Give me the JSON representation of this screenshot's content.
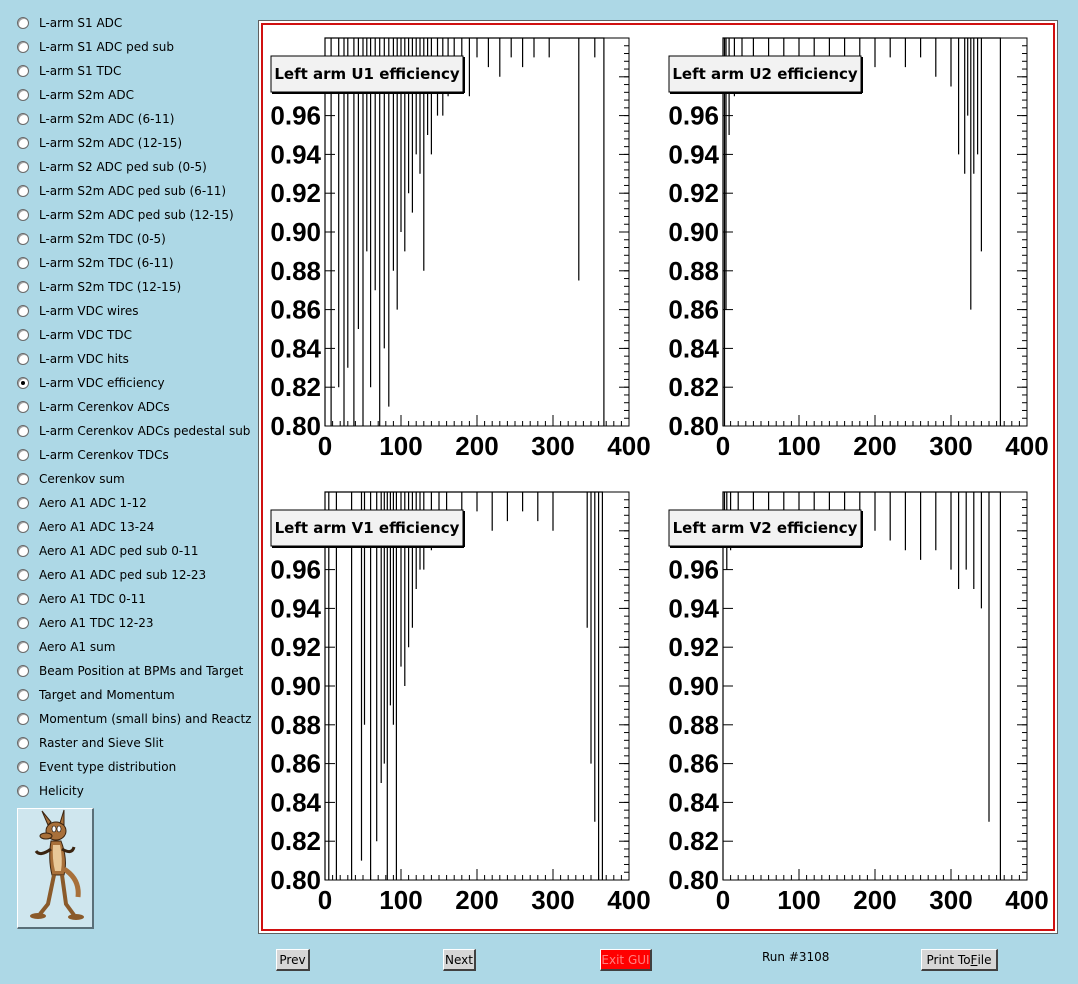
{
  "sidebar": {
    "items": [
      {
        "label": "L-arm S1 ADC",
        "checked": false
      },
      {
        "label": "L-arm S1 ADC ped sub",
        "checked": false
      },
      {
        "label": "L-arm S1 TDC",
        "checked": false
      },
      {
        "label": "L-arm S2m ADC",
        "checked": false
      },
      {
        "label": "L-arm S2m ADC (6-11)",
        "checked": false
      },
      {
        "label": "L-arm S2m ADC (12-15)",
        "checked": false
      },
      {
        "label": "L-arm S2 ADC ped sub (0-5)",
        "checked": false
      },
      {
        "label": "L-arm S2m ADC ped sub (6-11)",
        "checked": false
      },
      {
        "label": "L-arm S2m ADC ped sub (12-15)",
        "checked": false
      },
      {
        "label": "L-arm S2m TDC (0-5)",
        "checked": false
      },
      {
        "label": "L-arm S2m TDC (6-11)",
        "checked": false
      },
      {
        "label": "L-arm S2m TDC (12-15)",
        "checked": false
      },
      {
        "label": "L-arm VDC wires",
        "checked": false
      },
      {
        "label": "L-arm VDC TDC",
        "checked": false
      },
      {
        "label": "L-arm VDC hits",
        "checked": false
      },
      {
        "label": "L-arm VDC efficiency",
        "checked": true
      },
      {
        "label": "L-arm Cerenkov ADCs",
        "checked": false
      },
      {
        "label": "L-arm Cerenkov ADCs pedestal sub",
        "checked": false
      },
      {
        "label": "L-arm Cerenkov TDCs",
        "checked": false
      },
      {
        "label": "Cerenkov sum",
        "checked": false
      },
      {
        "label": "Aero A1 ADC 1-12",
        "checked": false
      },
      {
        "label": "Aero A1 ADC 13-24",
        "checked": false
      },
      {
        "label": "Aero A1 ADC ped sub 0-11",
        "checked": false
      },
      {
        "label": "Aero A1 ADC ped sub 12-23",
        "checked": false
      },
      {
        "label": "Aero A1 TDC 0-11",
        "checked": false
      },
      {
        "label": "Aero A1 TDC 12-23",
        "checked": false
      },
      {
        "label": "Aero A1 sum",
        "checked": false
      },
      {
        "label": "Beam Position at BPMs and Target",
        "checked": false
      },
      {
        "label": "Target and Momentum",
        "checked": false
      },
      {
        "label": "Momentum (small bins) and Reactz",
        "checked": false
      },
      {
        "label": "Raster and Sieve Slit",
        "checked": false
      },
      {
        "label": "Event type distribution",
        "checked": false
      },
      {
        "label": "Helicity",
        "checked": false
      }
    ],
    "logo_icon": "coyote-icon"
  },
  "buttons": {
    "prev": "Prev",
    "next": "Next",
    "exit": "Exit GUI",
    "print_prefix": "Print To ",
    "print_accel": "F",
    "print_suffix": "ile"
  },
  "run_label": "Run #3108",
  "colors": {
    "background": "#add8e6",
    "canvas_border": "#d01010",
    "exit_button": "#ff0000"
  },
  "chart_data": [
    {
      "type": "line",
      "title": "Left arm U1 efficiency",
      "xlim": [
        0,
        400
      ],
      "ylim": [
        0.8,
        1.0
      ],
      "xticks": [
        0,
        100,
        200,
        300,
        400
      ],
      "yticks": [
        0.8,
        0.82,
        0.84,
        0.86,
        0.88,
        0.9,
        0.92,
        0.94,
        0.96,
        0.98
      ],
      "xtick_labels": [
        "0",
        "100",
        "200",
        "300",
        "400"
      ],
      "ytick_labels": [
        "0.80",
        "0.82",
        "0.84",
        "0.86",
        "0.88",
        "0.90",
        "0.92",
        "0.94",
        "0.96",
        "0.98"
      ],
      "baseline": 1.0,
      "x_end": 367,
      "dips": [
        [
          8,
          0.8
        ],
        [
          18,
          0.82
        ],
        [
          25,
          0.8
        ],
        [
          30,
          0.83
        ],
        [
          38,
          0.8
        ],
        [
          44,
          0.85
        ],
        [
          50,
          0.8
        ],
        [
          55,
          0.89
        ],
        [
          60,
          0.82
        ],
        [
          66,
          0.87
        ],
        [
          72,
          0.8
        ],
        [
          78,
          0.84
        ],
        [
          84,
          0.81
        ],
        [
          90,
          0.88
        ],
        [
          95,
          0.86
        ],
        [
          100,
          0.9
        ],
        [
          105,
          0.89
        ],
        [
          110,
          0.92
        ],
        [
          115,
          0.91
        ],
        [
          120,
          0.94
        ],
        [
          125,
          0.93
        ],
        [
          130,
          0.88
        ],
        [
          135,
          0.95
        ],
        [
          140,
          0.94
        ],
        [
          148,
          0.96
        ],
        [
          155,
          0.96
        ],
        [
          162,
          0.97
        ],
        [
          170,
          0.98
        ],
        [
          180,
          0.985
        ],
        [
          190,
          0.97
        ],
        [
          200,
          0.99
        ],
        [
          215,
          0.985
        ],
        [
          230,
          0.98
        ],
        [
          245,
          0.99
        ],
        [
          260,
          0.985
        ],
        [
          275,
          0.99
        ],
        [
          295,
          0.99
        ],
        [
          334,
          0.875
        ],
        [
          355,
          0.99
        ]
      ]
    },
    {
      "type": "line",
      "title": "Left arm U2 efficiency",
      "xlim": [
        0,
        400
      ],
      "ylim": [
        0.8,
        1.0
      ],
      "xticks": [
        0,
        100,
        200,
        300,
        400
      ],
      "yticks": [
        0.8,
        0.82,
        0.84,
        0.86,
        0.88,
        0.9,
        0.92,
        0.94,
        0.96,
        0.98
      ],
      "xtick_labels": [
        "0",
        "100",
        "200",
        "300",
        "400"
      ],
      "ytick_labels": [
        "0.80",
        "0.82",
        "0.84",
        "0.86",
        "0.88",
        "0.90",
        "0.92",
        "0.94",
        "0.96",
        "0.98"
      ],
      "baseline": 1.0,
      "x_end": 365,
      "dips": [
        [
          2,
          0.8
        ],
        [
          4,
          0.86
        ],
        [
          8,
          0.95
        ],
        [
          15,
          0.97
        ],
        [
          25,
          0.985
        ],
        [
          40,
          0.98
        ],
        [
          60,
          0.99
        ],
        [
          80,
          0.985
        ],
        [
          100,
          0.99
        ],
        [
          120,
          0.985
        ],
        [
          140,
          0.99
        ],
        [
          160,
          0.985
        ],
        [
          180,
          0.99
        ],
        [
          200,
          0.985
        ],
        [
          220,
          0.99
        ],
        [
          240,
          0.985
        ],
        [
          260,
          0.99
        ],
        [
          280,
          0.98
        ],
        [
          300,
          0.975
        ],
        [
          310,
          0.94
        ],
        [
          318,
          0.93
        ],
        [
          322,
          0.96
        ],
        [
          326,
          0.86
        ],
        [
          330,
          0.93
        ],
        [
          335,
          0.94
        ],
        [
          340,
          0.89
        ]
      ]
    },
    {
      "type": "line",
      "title": "Left arm V1 efficiency",
      "xlim": [
        0,
        400
      ],
      "ylim": [
        0.8,
        1.0
      ],
      "xticks": [
        0,
        100,
        200,
        300,
        400
      ],
      "yticks": [
        0.8,
        0.82,
        0.84,
        0.86,
        0.88,
        0.9,
        0.92,
        0.94,
        0.96,
        0.98
      ],
      "xtick_labels": [
        "0",
        "100",
        "200",
        "300",
        "400"
      ],
      "ytick_labels": [
        "0.80",
        "0.82",
        "0.84",
        "0.86",
        "0.88",
        "0.90",
        "0.92",
        "0.94",
        "0.96",
        "0.98"
      ],
      "baseline": 1.0,
      "x_end": 365,
      "dips": [
        [
          5,
          0.8
        ],
        [
          15,
          0.8
        ],
        [
          35,
          0.8
        ],
        [
          48,
          0.81
        ],
        [
          52,
          0.88
        ],
        [
          60,
          0.8
        ],
        [
          68,
          0.82
        ],
        [
          74,
          0.85
        ],
        [
          78,
          0.86
        ],
        [
          82,
          0.8
        ],
        [
          86,
          0.89
        ],
        [
          90,
          0.88
        ],
        [
          94,
          0.8
        ],
        [
          100,
          0.91
        ],
        [
          105,
          0.9
        ],
        [
          110,
          0.92
        ],
        [
          115,
          0.93
        ],
        [
          120,
          0.95
        ],
        [
          125,
          0.96
        ],
        [
          130,
          0.96
        ],
        [
          140,
          0.97
        ],
        [
          150,
          0.975
        ],
        [
          160,
          0.99
        ],
        [
          180,
          0.985
        ],
        [
          200,
          0.99
        ],
        [
          220,
          0.98
        ],
        [
          240,
          0.985
        ],
        [
          260,
          0.99
        ],
        [
          280,
          0.985
        ],
        [
          300,
          0.98
        ],
        [
          345,
          0.93
        ],
        [
          350,
          0.86
        ],
        [
          355,
          0.83
        ],
        [
          360,
          0.8
        ]
      ]
    },
    {
      "type": "line",
      "title": "Left arm V2 efficiency",
      "xlim": [
        0,
        400
      ],
      "ylim": [
        0.8,
        1.0
      ],
      "xticks": [
        0,
        100,
        200,
        300,
        400
      ],
      "yticks": [
        0.8,
        0.82,
        0.84,
        0.86,
        0.88,
        0.9,
        0.92,
        0.94,
        0.96,
        0.98
      ],
      "xtick_labels": [
        "0",
        "100",
        "200",
        "300",
        "400"
      ],
      "ytick_labels": [
        "0.80",
        "0.82",
        "0.84",
        "0.86",
        "0.88",
        "0.90",
        "0.92",
        "0.94",
        "0.96",
        "0.98"
      ],
      "baseline": 1.0,
      "x_end": 365,
      "dips": [
        [
          2,
          0.98
        ],
        [
          5,
          0.96
        ],
        [
          10,
          0.97
        ],
        [
          20,
          0.985
        ],
        [
          40,
          0.98
        ],
        [
          60,
          0.99
        ],
        [
          80,
          0.985
        ],
        [
          100,
          0.99
        ],
        [
          120,
          0.985
        ],
        [
          140,
          0.99
        ],
        [
          160,
          0.985
        ],
        [
          180,
          0.99
        ],
        [
          200,
          0.98
        ],
        [
          220,
          0.975
        ],
        [
          240,
          0.97
        ],
        [
          260,
          0.965
        ],
        [
          280,
          0.97
        ],
        [
          300,
          0.96
        ],
        [
          310,
          0.95
        ],
        [
          320,
          0.96
        ],
        [
          330,
          0.95
        ],
        [
          340,
          0.94
        ],
        [
          350,
          0.83
        ]
      ]
    }
  ]
}
